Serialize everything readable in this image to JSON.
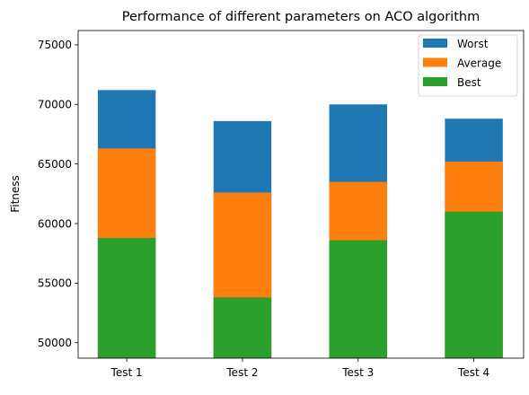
{
  "chart_data": {
    "type": "bar",
    "title": "Performance of different parameters on ACO algorithm",
    "xlabel": "",
    "ylabel": "Fitness",
    "categories": [
      "Test 1",
      "Test 2",
      "Test 3",
      "Test 4"
    ],
    "ylim": [
      48700,
      76200
    ],
    "yticks": [
      50000,
      55000,
      60000,
      65000,
      70000,
      75000
    ],
    "grid": false,
    "legend_position": "top-right",
    "draw_order": [
      "Worst",
      "Average",
      "Best"
    ],
    "series": [
      {
        "name": "Worst",
        "color": "#1f77b4",
        "values": [
          71200,
          68600,
          70000,
          68800
        ]
      },
      {
        "name": "Average",
        "color": "#ff7f0e",
        "values": [
          66300,
          62600,
          63500,
          65200
        ]
      },
      {
        "name": "Best",
        "color": "#2ca02c",
        "values": [
          58800,
          53800,
          58600,
          61000
        ]
      }
    ]
  }
}
